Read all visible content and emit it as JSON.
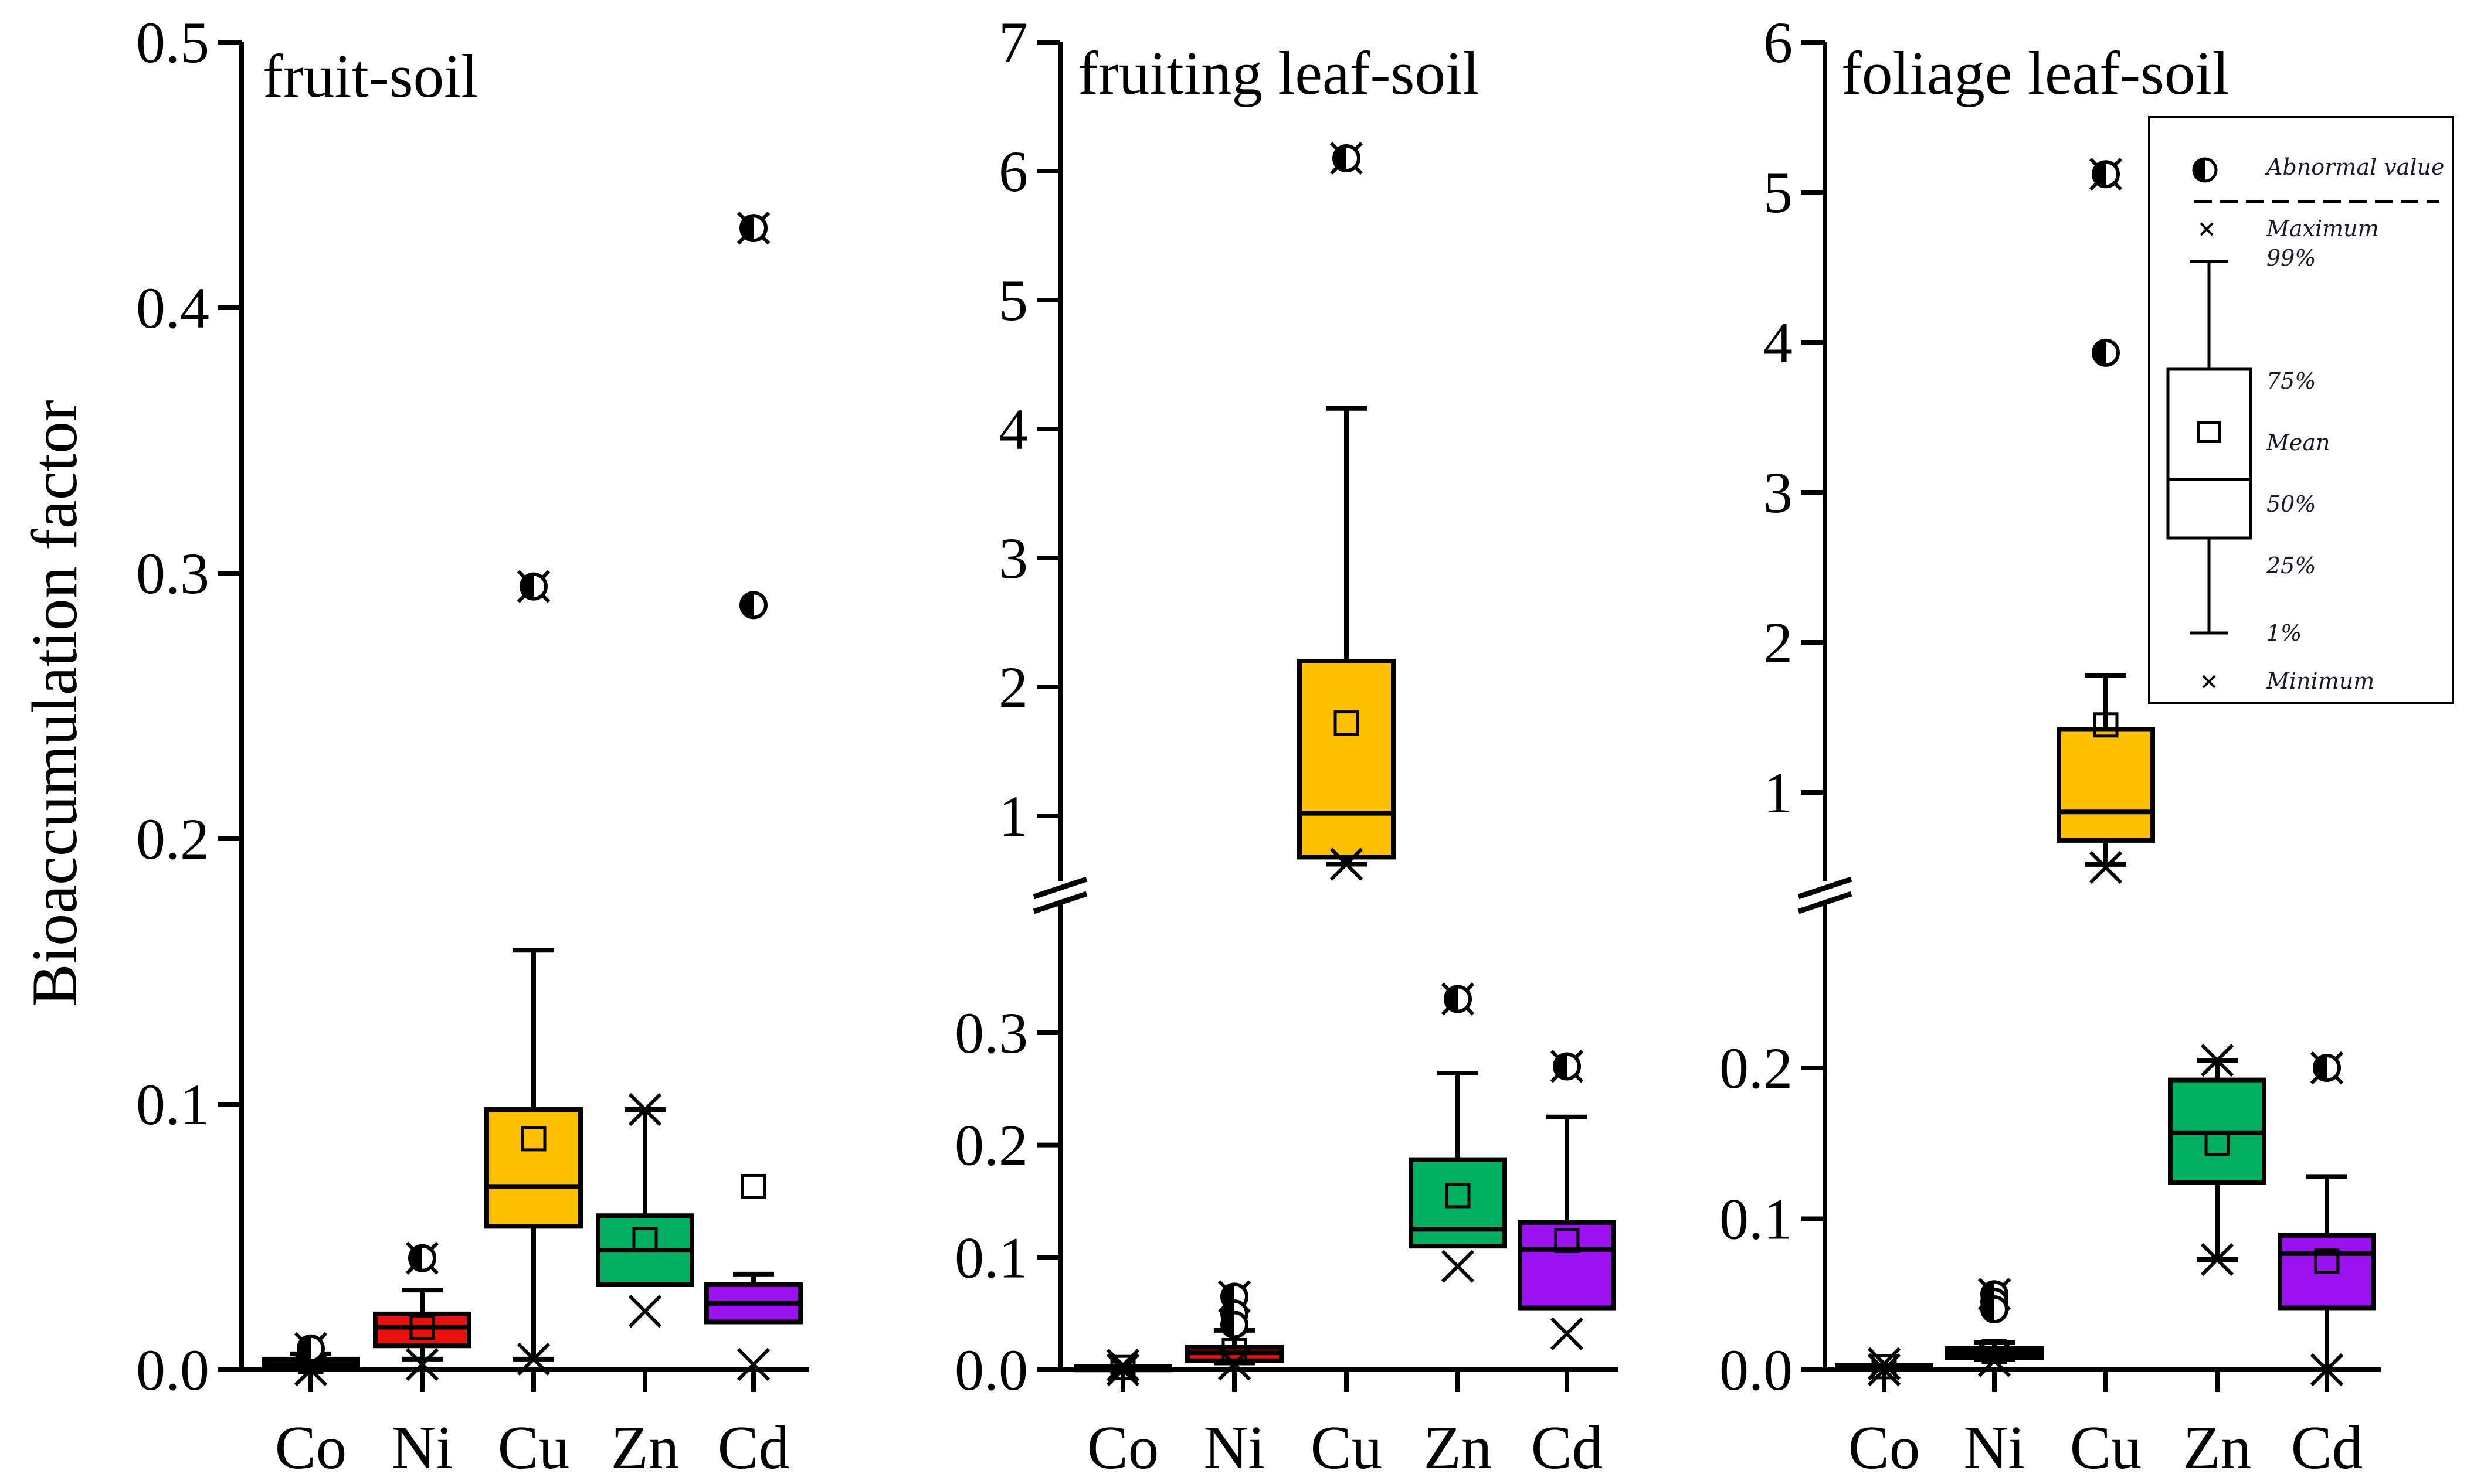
{
  "figure": {
    "ylabel": "Bioaccumulation factor"
  },
  "chart_data": [
    {
      "type": "box",
      "title": "fruit-soil",
      "ylabel": "Bioaccumulation factor",
      "ylim": [
        0,
        0.5
      ],
      "yticks": [
        "0.0",
        "0.1",
        "0.2",
        "0.3",
        "0.4",
        "0.5"
      ],
      "categories": [
        "Co",
        "Ni",
        "Cu",
        "Zn",
        "Cd"
      ],
      "boxes": [
        {
          "category": "Co",
          "color": "#111111",
          "min": 0.0,
          "p1": 0.0,
          "q1": 0.001,
          "median": 0.002,
          "mean": 0.003,
          "q3": 0.004,
          "p99": 0.006,
          "max": 0.008,
          "outliers": [
            0.008
          ]
        },
        {
          "category": "Ni",
          "color": "#e8120c",
          "min": 0.002,
          "p1": 0.004,
          "q1": 0.009,
          "median": 0.016,
          "mean": 0.016,
          "q3": 0.021,
          "p99": 0.03,
          "max": 0.042,
          "outliers": [
            0.042
          ]
        },
        {
          "category": "Cu",
          "color": "#ffc000",
          "min": 0.004,
          "p1": 0.004,
          "q1": 0.054,
          "median": 0.069,
          "mean": 0.087,
          "q3": 0.098,
          "p99": 0.158,
          "max": 0.295,
          "outliers": [
            0.295
          ]
        },
        {
          "category": "Zn",
          "color": "#00b060",
          "min": 0.022,
          "p1": 0.032,
          "q1": 0.032,
          "median": 0.045,
          "mean": 0.049,
          "q3": 0.058,
          "p99": 0.098,
          "max": 0.098,
          "outliers": []
        },
        {
          "category": "Cd",
          "color": "#9b11f0",
          "min": 0.002,
          "p1": 0.018,
          "q1": 0.018,
          "median": 0.025,
          "mean": 0.069,
          "q3": 0.032,
          "p99": 0.036,
          "max": 0.43,
          "outliers": [
            0.43,
            0.288
          ]
        }
      ]
    },
    {
      "type": "box",
      "title": "fruiting leaf-soil",
      "broken_axis": true,
      "ylim_lower": [
        0,
        0.37
      ],
      "ylim_upper": [
        0.5,
        7
      ],
      "yticks_lower": [
        "0.0",
        "0.1",
        "0.2",
        "0.3"
      ],
      "yticks_upper": [
        "1",
        "2",
        "3",
        "4",
        "5",
        "6",
        "7"
      ],
      "categories": [
        "Co",
        "Ni",
        "Cu",
        "Zn",
        "Cd"
      ],
      "boxes": [
        {
          "category": "Co",
          "color": "#111111",
          "min": 0.0,
          "p1": 0.0,
          "q1": 0.001,
          "median": 0.002,
          "mean": 0.002,
          "q3": 0.003,
          "p99": 0.003,
          "max": 0.004,
          "outliers": []
        },
        {
          "category": "Ni",
          "color": "#e8120c",
          "min": 0.005,
          "p1": 0.006,
          "q1": 0.008,
          "median": 0.015,
          "mean": 0.017,
          "q3": 0.02,
          "p99": 0.035,
          "max": 0.065,
          "outliers": [
            0.065,
            0.05,
            0.04
          ]
        },
        {
          "category": "Cu",
          "color": "#ffc000",
          "min": 0.45,
          "p1": 0.45,
          "q1": 0.68,
          "median": 1.02,
          "mean": 1.72,
          "q3": 2.2,
          "p99": 4.16,
          "max": 6.1,
          "outliers": [
            6.1
          ]
        },
        {
          "category": "Zn",
          "color": "#00b060",
          "min": 0.092,
          "p1": 0.11,
          "q1": 0.11,
          "median": 0.125,
          "mean": 0.155,
          "q3": 0.187,
          "p99": 0.264,
          "max": 0.33,
          "outliers": [
            0.33
          ]
        },
        {
          "category": "Cd",
          "color": "#9b11f0",
          "min": 0.032,
          "p1": 0.055,
          "q1": 0.055,
          "median": 0.107,
          "mean": 0.115,
          "q3": 0.131,
          "p99": 0.225,
          "max": 0.27,
          "outliers": [
            0.27
          ]
        }
      ]
    },
    {
      "type": "box",
      "title": "foliage leaf-soil",
      "broken_axis": true,
      "ylim_lower": [
        0,
        0.28
      ],
      "ylim_upper": [
        0.3,
        6
      ],
      "yticks_lower": [
        "0.0",
        "0.1",
        "0.2"
      ],
      "yticks_upper": [
        "1",
        "2",
        "3",
        "4",
        "5",
        "6"
      ],
      "categories": [
        "Co",
        "Ni",
        "Cu",
        "Zn",
        "Cd"
      ],
      "boxes": [
        {
          "category": "Co",
          "color": "#111111",
          "min": 0.0,
          "p1": 0.0,
          "q1": 0.001,
          "median": 0.002,
          "mean": 0.002,
          "q3": 0.003,
          "p99": 0.003,
          "max": 0.004,
          "outliers": []
        },
        {
          "category": "Ni",
          "color": "#111111",
          "min": 0.006,
          "p1": 0.007,
          "q1": 0.008,
          "median": 0.011,
          "mean": 0.012,
          "q3": 0.014,
          "p99": 0.018,
          "max": 0.05,
          "outliers": [
            0.05,
            0.045,
            0.04
          ]
        },
        {
          "category": "Cu",
          "color": "#ffc000",
          "min": 0.5,
          "p1": 0.52,
          "q1": 0.68,
          "median": 0.87,
          "mean": 1.45,
          "q3": 1.42,
          "p99": 1.78,
          "max": 5.12,
          "outliers": [
            5.12,
            3.93
          ]
        },
        {
          "category": "Zn",
          "color": "#00b060",
          "min": 0.073,
          "p1": 0.073,
          "q1": 0.124,
          "median": 0.157,
          "mean": 0.15,
          "q3": 0.192,
          "p99": 0.205,
          "max": 0.205,
          "outliers": []
        },
        {
          "category": "Cd",
          "color": "#9b11f0",
          "min": 0.0,
          "p1": 0.0,
          "q1": 0.041,
          "median": 0.077,
          "mean": 0.072,
          "q3": 0.089,
          "p99": 0.128,
          "max": 0.2,
          "outliers": [
            0.2
          ]
        }
      ]
    }
  ],
  "legend": {
    "items": [
      {
        "key": "outlier",
        "label": "Abnormal value"
      },
      {
        "key": "max",
        "label": "Maximum"
      },
      {
        "key": "p99",
        "label": "99%"
      },
      {
        "key": "q3",
        "label": "75%"
      },
      {
        "key": "mean",
        "label": "Mean"
      },
      {
        "key": "median",
        "label": "50%"
      },
      {
        "key": "q1",
        "label": "25%"
      },
      {
        "key": "p1",
        "label": "1%"
      },
      {
        "key": "min",
        "label": "Minimum"
      }
    ]
  }
}
